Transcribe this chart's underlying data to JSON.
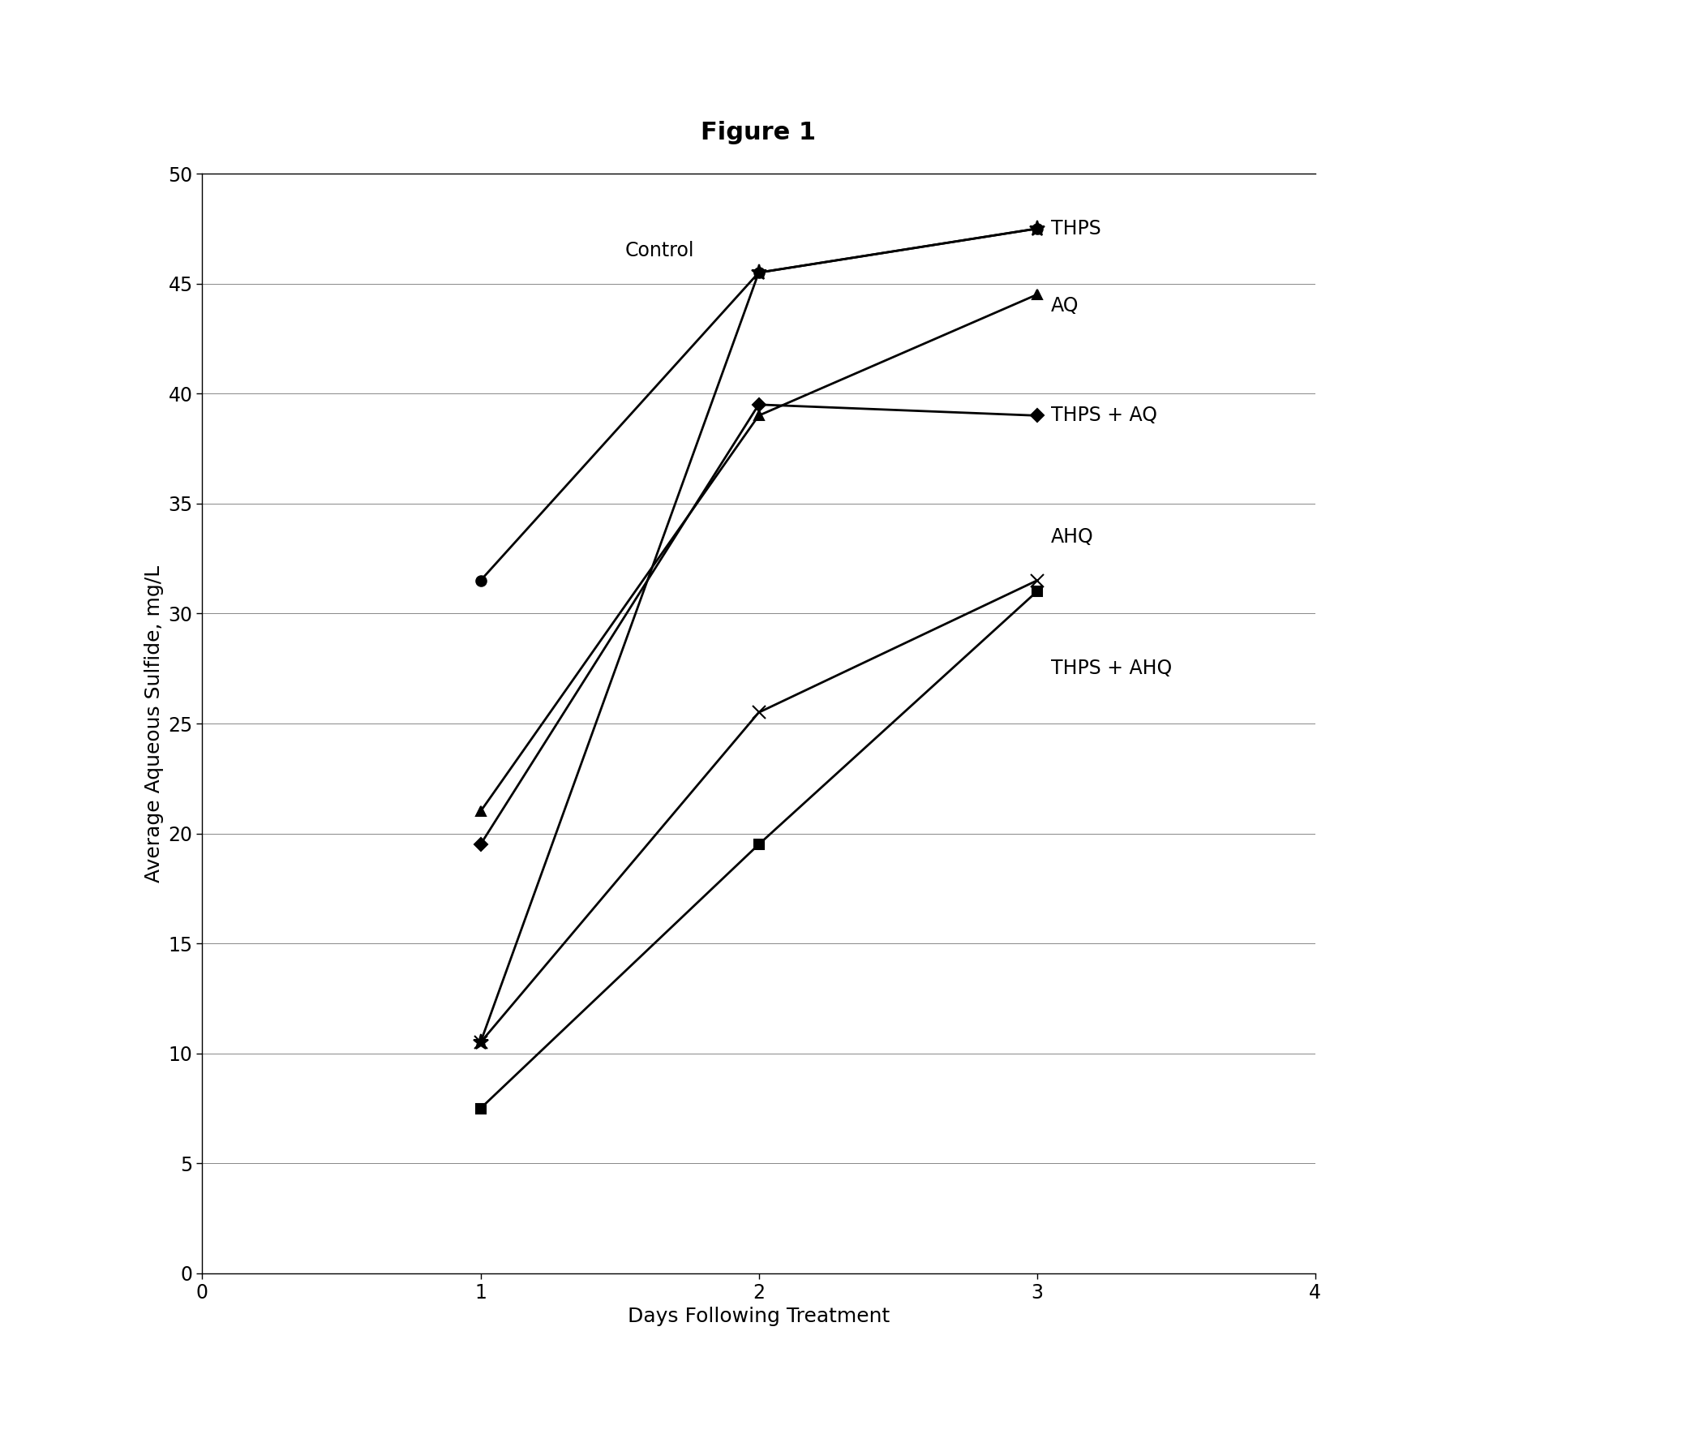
{
  "title": "Figure 1",
  "xlabel": "Days Following Treatment",
  "ylabel": "Average Aqueous Sulfide, mg/L",
  "xlim": [
    0,
    4
  ],
  "ylim": [
    0,
    50
  ],
  "xticks": [
    0,
    1,
    2,
    3,
    4
  ],
  "yticks": [
    0,
    5,
    10,
    15,
    20,
    25,
    30,
    35,
    40,
    45,
    50
  ],
  "series": [
    {
      "label": "Control",
      "x": [
        1,
        2,
        3
      ],
      "y": [
        31.5,
        45.5,
        47.5
      ],
      "marker": "o",
      "markersize": 9,
      "linewidth": 2.0,
      "color": "#000000",
      "annotation": "Control",
      "ann_x": 1.52,
      "ann_y": 46.5
    },
    {
      "label": "THPS",
      "x": [
        1,
        2,
        3
      ],
      "y": [
        10.5,
        45.5,
        47.5
      ],
      "marker": "*",
      "markersize": 14,
      "linewidth": 2.0,
      "color": "#000000",
      "annotation": "THPS",
      "ann_x": 3.05,
      "ann_y": 47.5
    },
    {
      "label": "AQ",
      "x": [
        1,
        2,
        3
      ],
      "y": [
        21.0,
        39.0,
        44.5
      ],
      "marker": "^",
      "markersize": 9,
      "linewidth": 2.0,
      "color": "#000000",
      "annotation": "AQ",
      "ann_x": 3.05,
      "ann_y": 44.0
    },
    {
      "label": "THPS + AQ",
      "x": [
        1,
        2,
        3
      ],
      "y": [
        19.5,
        39.5,
        39.0
      ],
      "marker": "D",
      "markersize": 8,
      "linewidth": 2.0,
      "color": "#000000",
      "annotation": "THPS + AQ",
      "ann_x": 3.05,
      "ann_y": 39.0
    },
    {
      "label": "AHQ",
      "x": [
        1,
        2,
        3
      ],
      "y": [
        10.5,
        25.5,
        31.5
      ],
      "marker": "x",
      "markersize": 11,
      "linewidth": 2.0,
      "color": "#000000",
      "annotation": "AHQ",
      "ann_x": 3.05,
      "ann_y": 33.5
    },
    {
      "label": "THPS + AHQ",
      "x": [
        1,
        2,
        3
      ],
      "y": [
        7.5,
        19.5,
        31.0
      ],
      "marker": "s",
      "markersize": 8,
      "linewidth": 2.0,
      "color": "#000000",
      "annotation": "THPS + AHQ",
      "ann_x": 3.05,
      "ann_y": 27.5
    }
  ],
  "background_color": "#ffffff",
  "title_fontsize": 22,
  "label_fontsize": 18,
  "tick_fontsize": 17,
  "annotation_fontsize": 17
}
